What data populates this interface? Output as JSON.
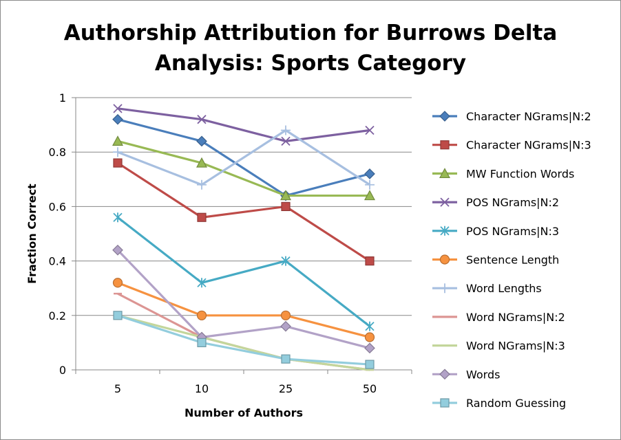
{
  "chart_data": {
    "type": "line",
    "title_lines": [
      "Authorship Attribution for Burrows Delta",
      "Analysis: Sports Category"
    ],
    "xlabel": "Number of Authors",
    "ylabel": "Fraction Correct",
    "categories": [
      "5",
      "10",
      "25",
      "50"
    ],
    "ylim": [
      0,
      1
    ],
    "yticks": [
      "0",
      "0.2",
      "0.4",
      "0.6",
      "0.8",
      "1"
    ],
    "grid": "horizontal",
    "legend_position": "right",
    "series": [
      {
        "name": "Character NGrams|N:2",
        "color": "#4a7ebb",
        "marker": "diamond",
        "values": [
          0.92,
          0.84,
          0.64,
          0.72
        ]
      },
      {
        "name": "Character NGrams|N:3",
        "color": "#be4b48",
        "marker": "square",
        "values": [
          0.76,
          0.56,
          0.6,
          0.4
        ]
      },
      {
        "name": "MW Function Words",
        "color": "#98b954",
        "marker": "triangle",
        "values": [
          0.84,
          0.76,
          0.64,
          0.64
        ]
      },
      {
        "name": "POS NGrams|N:2",
        "color": "#7d60a0",
        "marker": "x",
        "values": [
          0.96,
          0.92,
          0.84,
          0.88
        ]
      },
      {
        "name": "POS NGrams|N:3",
        "color": "#46aac4",
        "marker": "star",
        "values": [
          0.56,
          0.32,
          0.4,
          0.16
        ]
      },
      {
        "name": "Sentence Length",
        "color": "#f69240",
        "marker": "circle",
        "values": [
          0.32,
          0.2,
          0.2,
          0.12
        ]
      },
      {
        "name": "Word Lengths",
        "color": "#a7bfe0",
        "marker": "plus",
        "values": [
          0.8,
          0.68,
          0.88,
          0.68
        ]
      },
      {
        "name": "Word NGrams|N:2",
        "color": "#dc9593",
        "marker": "dash",
        "values": [
          0.28,
          0.12,
          0.04,
          0.0
        ]
      },
      {
        "name": "Word NGrams|N:3",
        "color": "#c3d69b",
        "marker": "dash",
        "values": [
          0.2,
          0.12,
          0.04,
          0.0
        ]
      },
      {
        "name": "Words",
        "color": "#b2a2c7",
        "marker": "diamond",
        "values": [
          0.44,
          0.12,
          0.16,
          0.08
        ]
      },
      {
        "name": "Random Guessing",
        "color": "#93cddd",
        "marker": "square",
        "values": [
          0.2,
          0.1,
          0.04,
          0.02
        ]
      }
    ]
  }
}
